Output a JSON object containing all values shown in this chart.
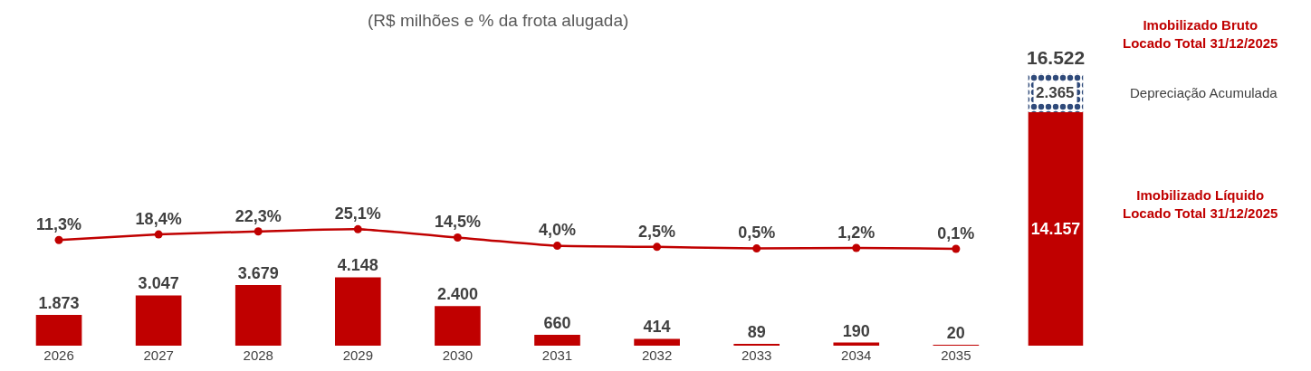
{
  "chart_data": {
    "type": "bar",
    "subtitle": "(R$ milhões e % da frota alugada)",
    "categories": [
      "2026",
      "2027",
      "2028",
      "2029",
      "2030",
      "2031",
      "2032",
      "2033",
      "2034",
      "2035",
      null
    ],
    "stacked": true,
    "series": [
      {
        "color": "#c00000",
        "values": [
          1873,
          3047,
          3679,
          4148,
          2400,
          660,
          414,
          89,
          190,
          20,
          14157
        ],
        "value_labels": [
          "1.873",
          "3.047",
          "3.679",
          "4.148",
          "2.400",
          "660",
          "414",
          "89",
          "190",
          "20",
          "14.157"
        ]
      },
      {
        "name": "Depreciação Acumulada",
        "color": "#2f4a7a",
        "values": [
          null,
          null,
          null,
          null,
          null,
          null,
          null,
          null,
          null,
          null,
          2365
        ],
        "value_labels": [
          null,
          null,
          null,
          null,
          null,
          null,
          null,
          null,
          null,
          null,
          "2.365"
        ]
      },
      {
        "type": "line",
        "axis": "y2",
        "color": "#c00000",
        "marker": "circle",
        "line_style": "solid",
        "values": [
          11.3,
          18.4,
          22.3,
          25.1,
          14.5,
          4.0,
          2.5,
          0.5,
          1.2,
          0.1,
          null
        ],
        "value_labels": [
          "11,3%",
          "18,4%",
          "22,3%",
          "25,1%",
          "14,5%",
          "4,0%",
          "2,5%",
          "0,5%",
          "1,2%",
          "0,1%",
          null
        ]
      }
    ],
    "totals": [
      null,
      null,
      null,
      null,
      null,
      null,
      null,
      null,
      null,
      null,
      "16.522"
    ],
    "annotations": [
      "Imobilizado Bruto Locado Total 31/12/2025",
      "Imobilizado Líquido Locado Total 31/12/2025"
    ],
    "tick_labels": "x",
    "grid": false,
    "legend": false
  }
}
